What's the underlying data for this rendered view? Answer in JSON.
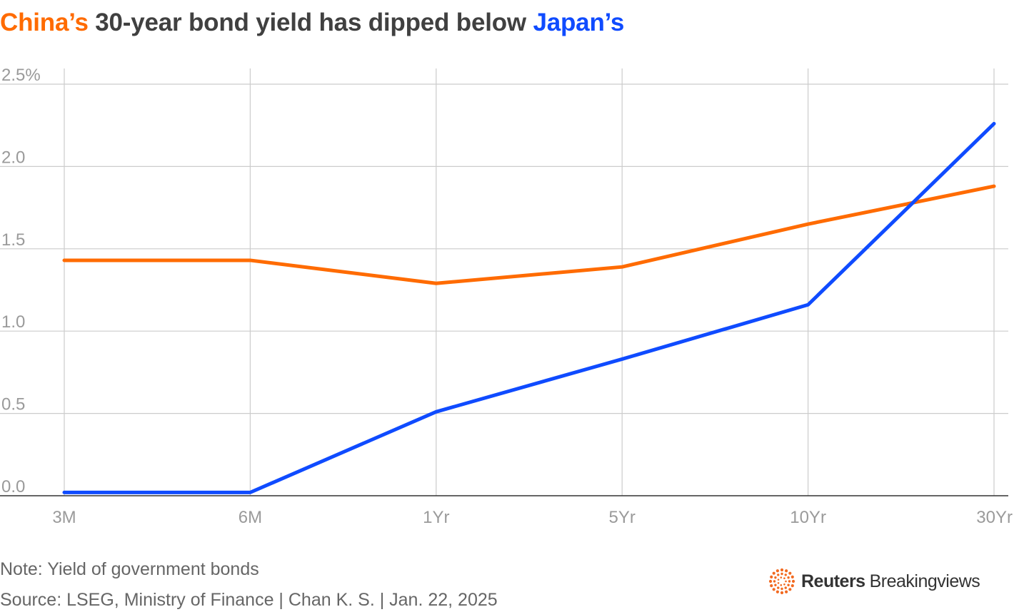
{
  "colors": {
    "china": "#ff6b00",
    "japan": "#0f4bff",
    "text": "#404040",
    "grid": "#cccccc",
    "axis_label": "#9a9a9a"
  },
  "title": {
    "part1": "China’s",
    "part2": " 30-year bond yield has dipped below ",
    "part3": "Japan’s"
  },
  "chart_data": {
    "type": "line",
    "categories": [
      "3M",
      "6M",
      "1Yr",
      "5Yr",
      "10Yr",
      "30Yr"
    ],
    "series": [
      {
        "name": "China’s",
        "color": "#ff6b00",
        "values": [
          1.43,
          1.43,
          1.29,
          1.39,
          1.65,
          1.88
        ]
      },
      {
        "name": "Japan’s",
        "color": "#0f4bff",
        "values": [
          0.02,
          0.02,
          0.51,
          0.83,
          1.16,
          2.26
        ]
      }
    ],
    "yticks": [
      "2.5%",
      "2.0",
      "1.5",
      "1.0",
      "0.5",
      "0.0"
    ],
    "ytick_values": [
      2.5,
      2.0,
      1.5,
      1.0,
      0.5,
      0.0
    ],
    "ylim": [
      0,
      2.5
    ],
    "grid": true,
    "legend": "in title"
  },
  "footer": {
    "note": "Note: Yield of government bonds",
    "source": "Source: LSEG, Ministry of Finance | Chan K. S. | Jan. 22, 2025"
  },
  "brand": {
    "logo_icon": "reuters-dot-ring-icon",
    "name_bold": "Reuters",
    "name_regular": "Breakingviews"
  }
}
